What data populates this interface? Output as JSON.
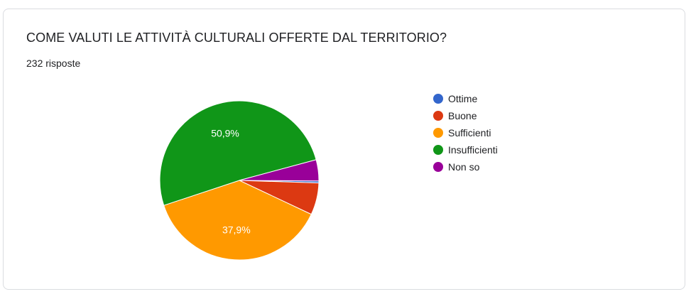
{
  "card": {
    "title": "COME VALUTI LE ATTIVITÀ CULTURALI OFFERTE DAL TERRITORIO?",
    "responses": "232 risposte"
  },
  "chart_data": {
    "type": "pie",
    "title": "COME VALUTI LE ATTIVITÀ CULTURALI OFFERTE DAL TERRITORIO?",
    "total_responses": 232,
    "slices": [
      {
        "label": "Ottime",
        "percent": 0.4,
        "color": "#3366cc",
        "data_label": ""
      },
      {
        "label": "Buone",
        "percent": 6.5,
        "color": "#dc3912",
        "data_label": ""
      },
      {
        "label": "Sufficienti",
        "percent": 37.9,
        "color": "#ff9900",
        "data_label": "37,9%"
      },
      {
        "label": "Insufficienti",
        "percent": 50.9,
        "color": "#109618",
        "data_label": "50,9%"
      },
      {
        "label": "Non so",
        "percent": 4.3,
        "color": "#990099",
        "data_label": ""
      }
    ],
    "legend_position": "right"
  }
}
